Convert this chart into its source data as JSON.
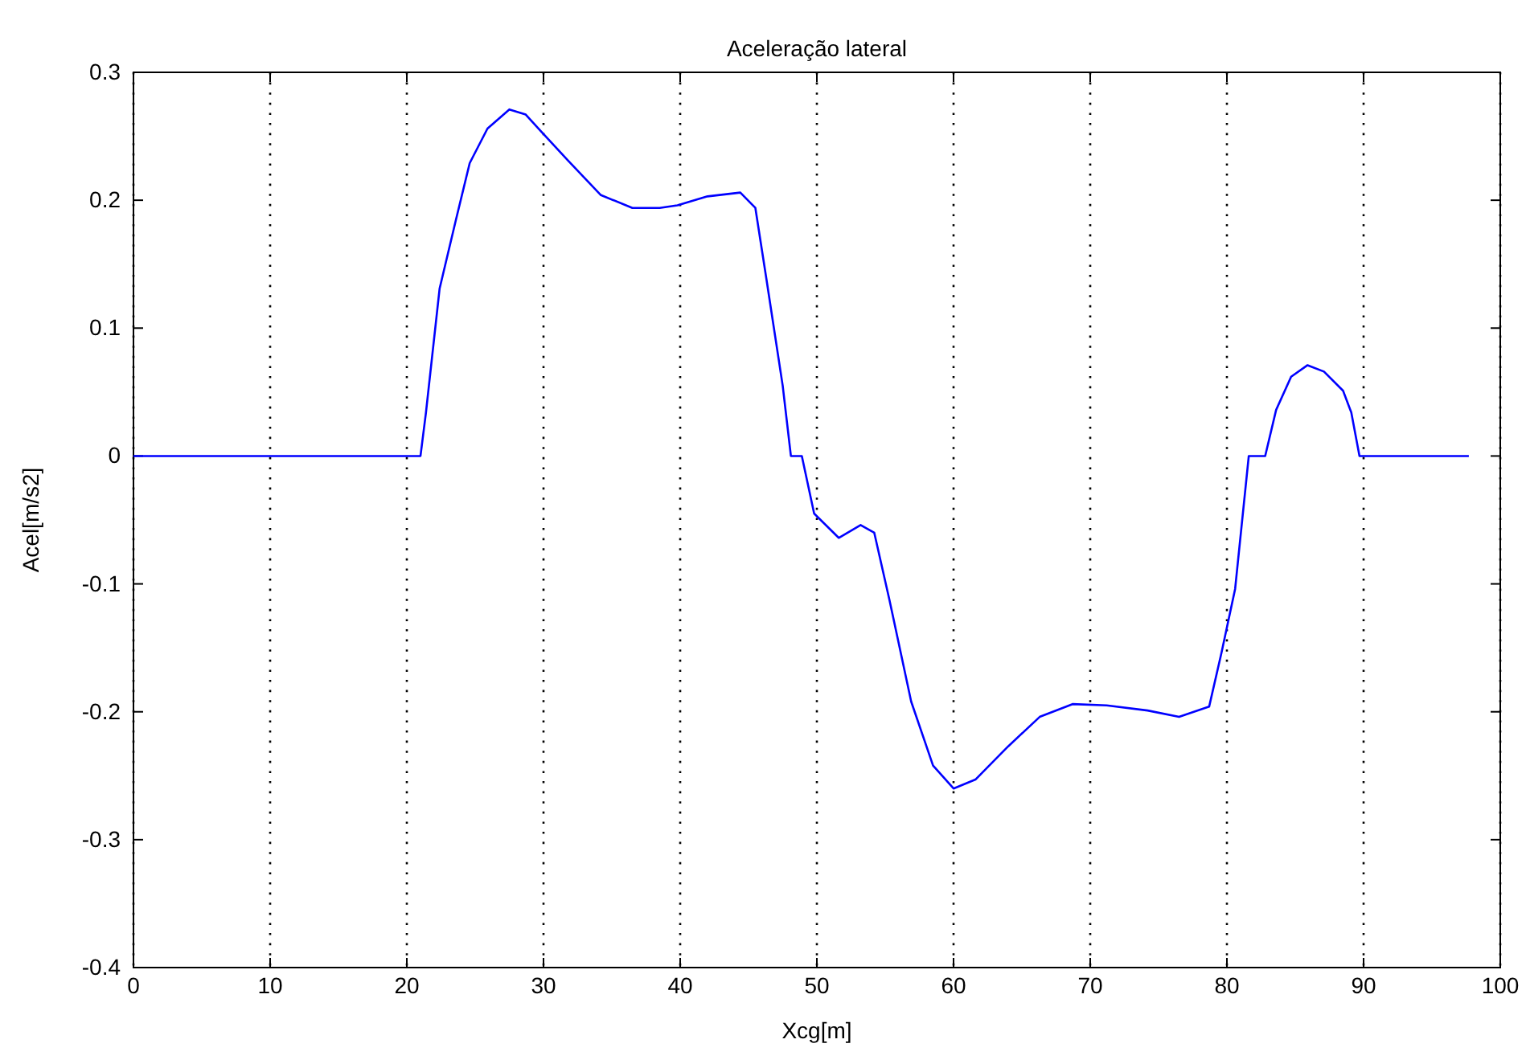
{
  "chart_data": {
    "type": "line",
    "title": "Aceleração lateral",
    "xlabel": "Xcg[m]",
    "ylabel": "Acel[m/s2]",
    "x": [
      0,
      21.0,
      21.4,
      22.4,
      23.6,
      24.6,
      25.9,
      27.5,
      28.7,
      29.8,
      31.8,
      34.2,
      36.5,
      38.5,
      39.8,
      42.0,
      44.4,
      45.5,
      46.3,
      47.5,
      48.1,
      48.9,
      49.8,
      51.6,
      53.2,
      54.2,
      55.3,
      56.9,
      58.5,
      60.0,
      61.6,
      64.0,
      66.3,
      68.7,
      71.2,
      74.2,
      76.5,
      78.7,
      79.6,
      80.6,
      81.6,
      82.8,
      83.6,
      84.7,
      85.9,
      87.1,
      88.5,
      89.1,
      89.7,
      97.7
    ],
    "series": [
      {
        "color": "#0000ff",
        "values": [
          0,
          0,
          0.034,
          0.131,
          0.185,
          0.229,
          0.256,
          0.271,
          0.267,
          0.254,
          0.231,
          0.204,
          0.194,
          0.194,
          0.196,
          0.203,
          0.206,
          0.194,
          0.139,
          0.055,
          0,
          0,
          -0.045,
          -0.064,
          -0.054,
          -0.06,
          -0.112,
          -0.192,
          -0.242,
          -0.26,
          -0.253,
          -0.227,
          -0.204,
          -0.194,
          -0.195,
          -0.199,
          -0.204,
          -0.196,
          -0.154,
          -0.104,
          0,
          0,
          0.036,
          0.062,
          0.071,
          0.066,
          0.051,
          0.034,
          0,
          0
        ]
      }
    ],
    "xlim": [
      0,
      100
    ],
    "xticks": [
      0,
      10,
      20,
      30,
      40,
      50,
      60,
      70,
      80,
      90,
      100
    ],
    "ylim": [
      -0.4,
      0.3
    ],
    "yticks": [
      -0.4,
      -0.3,
      -0.2,
      -0.1,
      0,
      0.1,
      0.2,
      0.3
    ],
    "grid": "x",
    "line_style": "solid"
  }
}
